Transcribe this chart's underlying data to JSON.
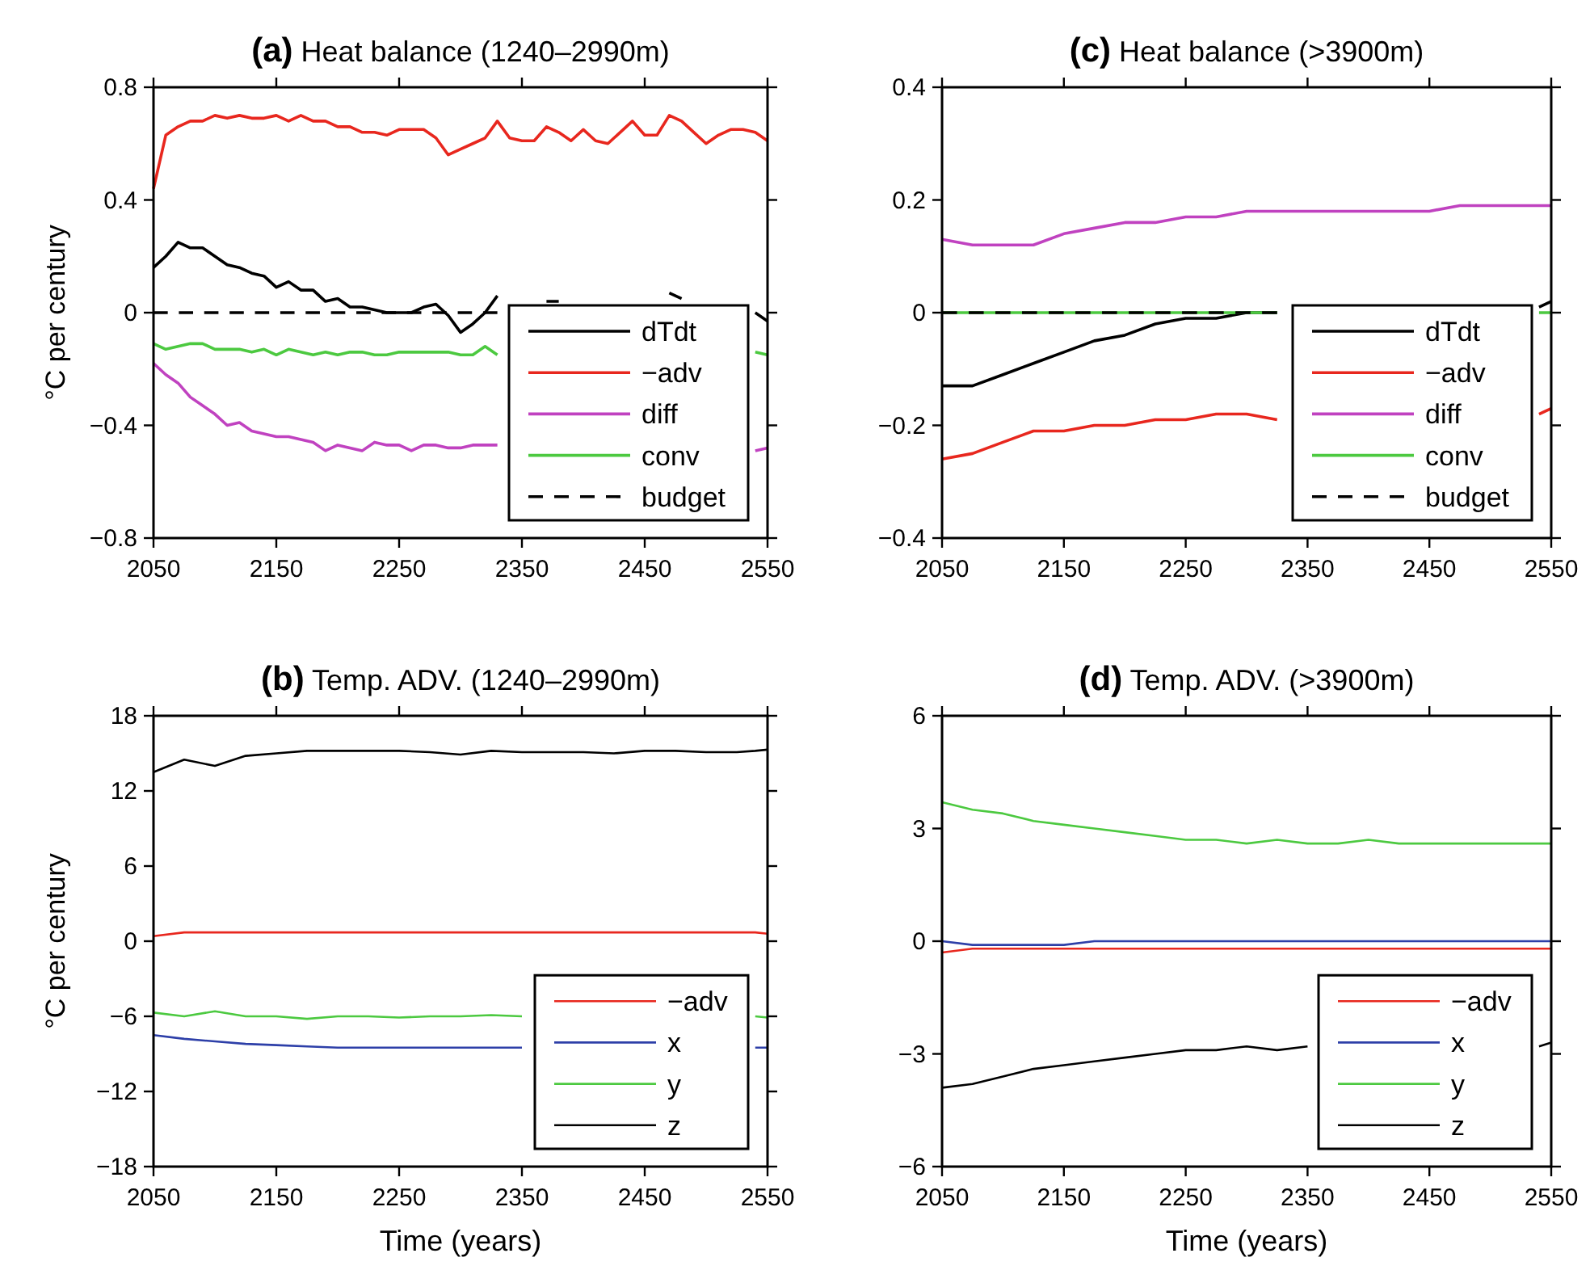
{
  "chart_data": [
    {
      "type": "line",
      "title": "(a) Heat balance (1240–2990m)",
      "ylabel": "°C per century",
      "x": [
        2050,
        2060,
        2070,
        2080,
        2090,
        2100,
        2110,
        2120,
        2130,
        2140,
        2150,
        2160,
        2170,
        2180,
        2190,
        2200,
        2210,
        2220,
        2230,
        2240,
        2250,
        2260,
        2270,
        2280,
        2290,
        2300,
        2310,
        2320,
        2330,
        2340,
        2350,
        2360,
        2370,
        2380,
        2390,
        2400,
        2410,
        2420,
        2430,
        2440,
        2450,
        2460,
        2470,
        2480,
        2490,
        2500,
        2510,
        2520,
        2530,
        2540,
        2550
      ],
      "series": [
        {
          "name": "dTdt",
          "color": "#000000",
          "values": [
            0.16,
            0.2,
            0.25,
            0.23,
            0.23,
            0.2,
            0.17,
            0.16,
            0.14,
            0.13,
            0.09,
            0.11,
            0.08,
            0.08,
            0.04,
            0.05,
            0.02,
            0.02,
            0.01,
            0.0,
            0.0,
            0.0,
            0.02,
            0.03,
            -0.01,
            -0.07,
            -0.04,
            0.0,
            0.06,
            null,
            null,
            null,
            0.04,
            0.04,
            null,
            null,
            null,
            null,
            null,
            null,
            null,
            null,
            0.07,
            0.05,
            null,
            null,
            null,
            null,
            null,
            0.0,
            -0.03
          ]
        },
        {
          "name": "−adv",
          "color": "#e8271e",
          "values": [
            0.44,
            0.63,
            0.66,
            0.68,
            0.68,
            0.7,
            0.69,
            0.7,
            0.69,
            0.69,
            0.7,
            0.68,
            0.7,
            0.68,
            0.68,
            0.66,
            0.66,
            0.64,
            0.64,
            0.63,
            0.65,
            0.65,
            0.65,
            0.62,
            0.56,
            0.58,
            0.6,
            0.62,
            0.68,
            0.62,
            0.61,
            0.61,
            0.66,
            0.64,
            0.61,
            0.65,
            0.61,
            0.6,
            0.64,
            0.68,
            0.63,
            0.63,
            0.7,
            0.68,
            0.64,
            0.6,
            0.63,
            0.65,
            0.65,
            0.64,
            0.61
          ]
        },
        {
          "name": "diff",
          "color": "#c042c0",
          "values": [
            -0.18,
            -0.22,
            -0.25,
            -0.3,
            -0.33,
            -0.36,
            -0.4,
            -0.39,
            -0.42,
            -0.43,
            -0.44,
            -0.44,
            -0.45,
            -0.46,
            -0.49,
            -0.47,
            -0.48,
            -0.49,
            -0.46,
            -0.47,
            -0.47,
            -0.49,
            -0.47,
            -0.47,
            -0.48,
            -0.48,
            -0.47,
            -0.47,
            -0.47,
            null,
            null,
            null,
            null,
            null,
            null,
            null,
            null,
            null,
            null,
            null,
            null,
            null,
            null,
            null,
            null,
            null,
            null,
            null,
            null,
            -0.49,
            -0.48
          ]
        },
        {
          "name": "conv",
          "color": "#4cc940",
          "values": [
            -0.11,
            -0.13,
            -0.12,
            -0.11,
            -0.11,
            -0.13,
            -0.13,
            -0.13,
            -0.14,
            -0.13,
            -0.15,
            -0.13,
            -0.14,
            -0.15,
            -0.14,
            -0.15,
            -0.14,
            -0.14,
            -0.15,
            -0.15,
            -0.14,
            -0.14,
            -0.14,
            -0.14,
            -0.14,
            -0.15,
            -0.15,
            -0.12,
            -0.15,
            null,
            null,
            null,
            null,
            null,
            null,
            null,
            null,
            null,
            null,
            null,
            null,
            null,
            null,
            null,
            null,
            null,
            null,
            null,
            null,
            -0.14,
            -0.15
          ]
        },
        {
          "name": "budget",
          "color": "#000000",
          "line_style": "dashed",
          "values": [
            0,
            0,
            0,
            0,
            0,
            0,
            0,
            0,
            0,
            0,
            0,
            0,
            0,
            0,
            0,
            0,
            0,
            0,
            0,
            0,
            0,
            0,
            0,
            0,
            0,
            0,
            0,
            0,
            0,
            null,
            null,
            null,
            null,
            null,
            null,
            null,
            null,
            null,
            null,
            null,
            null,
            null,
            null,
            null,
            null,
            null,
            null,
            null,
            null,
            null,
            null
          ]
        }
      ],
      "xlim": [
        2050,
        2550
      ],
      "xticks": [
        2050,
        2150,
        2250,
        2350,
        2450,
        2550
      ],
      "ylim": [
        -0.8,
        0.8
      ],
      "yticks": [
        -0.8,
        -0.4,
        0,
        0.4,
        0.8
      ],
      "legend": "bottom right",
      "grid": false
    },
    {
      "type": "line",
      "title": "(c) Heat balance (>3900m)",
      "x": [
        2050,
        2075,
        2100,
        2125,
        2150,
        2175,
        2200,
        2225,
        2250,
        2275,
        2300,
        2325,
        2350,
        2375,
        2400,
        2425,
        2450,
        2475,
        2500,
        2525,
        2540,
        2550
      ],
      "series": [
        {
          "name": "dTdt",
          "color": "#000000",
          "values": [
            -0.13,
            -0.13,
            -0.11,
            -0.09,
            -0.07,
            -0.05,
            -0.04,
            -0.02,
            -0.01,
            -0.01,
            0.0,
            0.0,
            null,
            null,
            null,
            null,
            null,
            null,
            null,
            null,
            0.01,
            0.02
          ]
        },
        {
          "name": "−adv",
          "color": "#e8271e",
          "values": [
            -0.26,
            -0.25,
            -0.23,
            -0.21,
            -0.21,
            -0.2,
            -0.2,
            -0.19,
            -0.19,
            -0.18,
            -0.18,
            -0.19,
            null,
            null,
            null,
            null,
            null,
            null,
            null,
            null,
            -0.18,
            -0.17
          ]
        },
        {
          "name": "diff",
          "color": "#c042c0",
          "values": [
            0.13,
            0.12,
            0.12,
            0.12,
            0.14,
            0.15,
            0.16,
            0.16,
            0.17,
            0.17,
            0.18,
            0.18,
            0.18,
            0.18,
            0.18,
            0.18,
            0.18,
            0.19,
            0.19,
            0.19,
            0.19,
            0.19
          ]
        },
        {
          "name": "conv",
          "color": "#4cc940",
          "values": [
            0,
            0,
            0,
            0,
            0,
            0,
            0,
            0,
            0,
            0,
            0,
            0,
            null,
            null,
            null,
            null,
            null,
            null,
            null,
            null,
            0,
            0
          ]
        },
        {
          "name": "budget",
          "color": "#000000",
          "line_style": "dashed",
          "values": [
            0,
            0,
            0,
            0,
            0,
            0,
            0,
            0,
            0,
            0,
            0,
            0,
            null,
            null,
            null,
            null,
            null,
            null,
            null,
            null,
            null,
            null
          ]
        }
      ],
      "xlim": [
        2050,
        2550
      ],
      "xticks": [
        2050,
        2150,
        2250,
        2350,
        2450,
        2550
      ],
      "ylim": [
        -0.4,
        0.4
      ],
      "yticks": [
        -0.4,
        -0.2,
        0,
        0.2,
        0.4
      ],
      "legend": "bottom right",
      "grid": false
    },
    {
      "type": "line",
      "title": "(b) Temp. ADV. (1240–2990m)",
      "ylabel": "°C per century",
      "xlabel": "Time (years)",
      "x": [
        2050,
        2075,
        2100,
        2125,
        2150,
        2175,
        2200,
        2225,
        2250,
        2275,
        2300,
        2325,
        2350,
        2375,
        2400,
        2425,
        2450,
        2475,
        2500,
        2525,
        2540,
        2550
      ],
      "series": [
        {
          "name": "−adv",
          "color": "#e8271e",
          "values": [
            0.4,
            0.7,
            0.7,
            0.7,
            0.7,
            0.7,
            0.7,
            0.7,
            0.7,
            0.7,
            0.7,
            0.7,
            0.7,
            0.7,
            0.7,
            0.7,
            0.7,
            0.7,
            0.7,
            0.7,
            0.7,
            0.6
          ]
        },
        {
          "name": "x",
          "color": "#2d3fa8",
          "values": [
            -7.5,
            -7.8,
            -8.0,
            -8.2,
            -8.3,
            -8.4,
            -8.5,
            -8.5,
            -8.5,
            -8.5,
            -8.5,
            -8.5,
            -8.5,
            null,
            null,
            null,
            null,
            null,
            null,
            null,
            -8.5,
            -8.5
          ]
        },
        {
          "name": "y",
          "color": "#4cc940",
          "values": [
            -5.7,
            -6.0,
            -5.6,
            -6.0,
            -6.0,
            -6.2,
            -6.0,
            -6.0,
            -6.1,
            -6.0,
            -6.0,
            -5.9,
            -6.0,
            null,
            null,
            null,
            null,
            null,
            null,
            null,
            -6.0,
            -6.1
          ]
        },
        {
          "name": "z",
          "color": "#000000",
          "values": [
            13.5,
            14.5,
            14.0,
            14.8,
            15.0,
            15.2,
            15.2,
            15.2,
            15.2,
            15.1,
            14.9,
            15.2,
            15.1,
            15.1,
            15.1,
            15.0,
            15.2,
            15.2,
            15.1,
            15.1,
            15.2,
            15.3
          ]
        }
      ],
      "xlim": [
        2050,
        2550
      ],
      "xticks": [
        2050,
        2150,
        2250,
        2350,
        2450,
        2550
      ],
      "ylim": [
        -18,
        18
      ],
      "yticks": [
        -18,
        -12,
        -6,
        0,
        6,
        12,
        18
      ],
      "legend": "bottom right",
      "grid": false
    },
    {
      "type": "line",
      "title": "(d) Temp. ADV. (>3900m)",
      "xlabel": "Time (years)",
      "x": [
        2050,
        2075,
        2100,
        2125,
        2150,
        2175,
        2200,
        2225,
        2250,
        2275,
        2300,
        2325,
        2350,
        2375,
        2400,
        2425,
        2450,
        2475,
        2500,
        2525,
        2540,
        2550
      ],
      "series": [
        {
          "name": "−adv",
          "color": "#e8271e",
          "values": [
            -0.3,
            -0.2,
            -0.2,
            -0.2,
            -0.2,
            -0.2,
            -0.2,
            -0.2,
            -0.2,
            -0.2,
            -0.2,
            -0.2,
            -0.2,
            -0.2,
            -0.2,
            -0.2,
            -0.2,
            -0.2,
            -0.2,
            -0.2,
            -0.2,
            -0.2
          ]
        },
        {
          "name": "x",
          "color": "#2d3fa8",
          "values": [
            0.0,
            -0.1,
            -0.1,
            -0.1,
            -0.1,
            0.0,
            0.0,
            0.0,
            0.0,
            0.0,
            0.0,
            0.0,
            0.0,
            0.0,
            0.0,
            0.0,
            0.0,
            0.0,
            0.0,
            0.0,
            0.0,
            0.0
          ]
        },
        {
          "name": "y",
          "color": "#4cc940",
          "values": [
            3.7,
            3.5,
            3.4,
            3.2,
            3.1,
            3.0,
            2.9,
            2.8,
            2.7,
            2.7,
            2.6,
            2.7,
            2.6,
            2.6,
            2.7,
            2.6,
            2.6,
            2.6,
            2.6,
            2.6,
            2.6,
            2.6
          ]
        },
        {
          "name": "z",
          "color": "#000000",
          "values": [
            -3.9,
            -3.8,
            -3.6,
            -3.4,
            -3.3,
            -3.2,
            -3.1,
            -3.0,
            -2.9,
            -2.9,
            -2.8,
            -2.9,
            -2.8,
            null,
            null,
            null,
            null,
            null,
            null,
            null,
            -2.8,
            -2.7
          ]
        }
      ],
      "xlim": [
        2050,
        2550
      ],
      "xticks": [
        2050,
        2150,
        2250,
        2350,
        2450,
        2550
      ],
      "ylim": [
        -6,
        6
      ],
      "yticks": [
        -6,
        -3,
        0,
        3,
        6
      ],
      "legend": "bottom right",
      "grid": false
    }
  ]
}
